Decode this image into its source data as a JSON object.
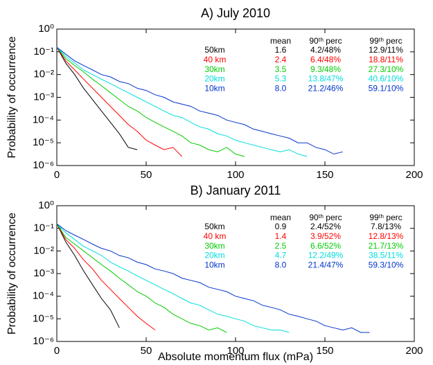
{
  "chart_data": [
    {
      "type": "line",
      "title": "A) July 2010",
      "ylabel": "Probability of occurrence",
      "ylog": true,
      "x": [
        0,
        5,
        10,
        15,
        20,
        25,
        30,
        35,
        40,
        45,
        50,
        55,
        60,
        65,
        70,
        75,
        80,
        85,
        90,
        95,
        100,
        105,
        110,
        115,
        120,
        125,
        130,
        135,
        140,
        145,
        150,
        155,
        160
      ],
      "series": [
        {
          "name": "50km",
          "color": "#000000",
          "values": [
            0.16,
            0.032,
            0.01,
            0.0025,
            0.00079,
            0.00025,
            7.9e-05,
            2.5e-05,
            6.3e-06,
            5e-06,
            null,
            null,
            null,
            null,
            null,
            null,
            null,
            null,
            null,
            null,
            null,
            null,
            null,
            null,
            null,
            null,
            null,
            null,
            null,
            null,
            null,
            null,
            null
          ]
        },
        {
          "name": "40 km",
          "color": "#ff0000",
          "values": [
            0.16,
            0.04,
            0.016,
            0.0063,
            0.0025,
            0.001,
            0.0004,
            0.00016,
            6.3e-05,
            3.2e-05,
            1.3e-05,
            7.9e-06,
            5e-06,
            6.3e-06,
            2.5e-06,
            null,
            null,
            null,
            null,
            null,
            null,
            null,
            null,
            null,
            null,
            null,
            null,
            null,
            null,
            null,
            null,
            null,
            null
          ]
        },
        {
          "name": "30km",
          "color": "#00cc00",
          "values": [
            0.16,
            0.05,
            0.025,
            0.013,
            0.0063,
            0.0032,
            0.0016,
            0.00079,
            0.0004,
            0.00025,
            0.00013,
            7.9e-05,
            5e-05,
            3.2e-05,
            2e-05,
            1e-05,
            7.9e-06,
            5e-06,
            4e-06,
            6.3e-06,
            3.2e-06,
            2.5e-06,
            null,
            null,
            null,
            null,
            null,
            null,
            null,
            null,
            null,
            null,
            null
          ]
        },
        {
          "name": "20km",
          "color": "#00dddd",
          "values": [
            0.16,
            0.063,
            0.032,
            0.016,
            0.01,
            0.0063,
            0.004,
            0.0025,
            0.0016,
            0.001,
            0.00063,
            0.0004,
            0.00025,
            0.00016,
            0.00013,
            7.9e-05,
            5e-05,
            4e-05,
            2.5e-05,
            2e-05,
            1.3e-05,
            1e-05,
            7.9e-06,
            6.3e-06,
            5e-06,
            4e-06,
            5e-06,
            3.2e-06,
            2.5e-06,
            null,
            null,
            null,
            null
          ]
        },
        {
          "name": "10km",
          "color": "#0033cc",
          "values": [
            0.16,
            0.079,
            0.04,
            0.025,
            0.016,
            0.01,
            0.0079,
            0.005,
            0.004,
            0.0025,
            0.002,
            0.0013,
            0.001,
            0.00063,
            0.0005,
            0.0004,
            0.00025,
            0.0002,
            0.00016,
            0.0001,
            7.9e-05,
            6.3e-05,
            4e-05,
            3.2e-05,
            2.5e-05,
            2e-05,
            1.6e-05,
            1e-05,
            1e-05,
            6.3e-06,
            5e-06,
            3.2e-06,
            4e-06
          ]
        }
      ],
      "table": {
        "columns": [
          "mean",
          "90ᵗʰ perc",
          "99ᵗʰ perc"
        ],
        "rows": [
          [
            "1.6",
            "4.2/48%",
            "12.9/11%"
          ],
          [
            "2.4",
            "6.4/48%",
            "18.8/11%"
          ],
          [
            "3.5",
            "9.3/48%",
            "27.3/10%"
          ],
          [
            "5.3",
            "13.8/47%",
            "40.6/10%"
          ],
          [
            "8.0",
            "21.2/46%",
            "59.1/10%"
          ]
        ]
      },
      "xlim": [
        0,
        200
      ],
      "xticks": [
        0,
        50,
        100,
        150,
        200
      ],
      "ylim": [
        1e-06,
        1
      ],
      "yticks": [
        {
          "value": 1,
          "label": "10⁰"
        },
        {
          "value": 0.1,
          "label": "10⁻¹"
        },
        {
          "value": 0.01,
          "label": "10⁻²"
        },
        {
          "value": 0.001,
          "label": "10⁻³"
        },
        {
          "value": 0.0001,
          "label": "10⁻⁴"
        },
        {
          "value": 1e-05,
          "label": "10⁻⁵"
        },
        {
          "value": 1e-06,
          "label": "10⁻⁶"
        }
      ]
    },
    {
      "type": "line",
      "title": "B) January 2011",
      "ylabel": "Probability of occurrence",
      "xlabel": "Absolute momentum flux (mPa)",
      "ylog": true,
      "x": [
        0,
        5,
        10,
        15,
        20,
        25,
        30,
        35,
        40,
        45,
        50,
        55,
        60,
        65,
        70,
        75,
        80,
        85,
        90,
        95,
        100,
        105,
        110,
        115,
        120,
        125,
        130,
        135,
        140,
        145,
        150,
        155,
        160,
        165,
        170,
        175
      ],
      "series": [
        {
          "name": "50km",
          "color": "#000000",
          "values": [
            0.16,
            0.025,
            0.0063,
            0.0013,
            0.00032,
            7.9e-05,
            2.5e-05,
            4e-06,
            null,
            null,
            null,
            null,
            null,
            null,
            null,
            null,
            null,
            null,
            null,
            null,
            null,
            null,
            null,
            null,
            null,
            null,
            null,
            null,
            null,
            null,
            null,
            null,
            null,
            null,
            null,
            null
          ]
        },
        {
          "name": "40 km",
          "color": "#ff0000",
          "values": [
            0.16,
            0.032,
            0.013,
            0.004,
            0.0016,
            0.0005,
            0.0002,
            7.9e-05,
            3.2e-05,
            1.3e-05,
            6.3e-06,
            3.2e-06,
            null,
            null,
            null,
            null,
            null,
            null,
            null,
            null,
            null,
            null,
            null,
            null,
            null,
            null,
            null,
            null,
            null,
            null,
            null,
            null,
            null,
            null,
            null,
            null
          ]
        },
        {
          "name": "30km",
          "color": "#00cc00",
          "values": [
            0.16,
            0.04,
            0.02,
            0.01,
            0.005,
            0.0025,
            0.0013,
            0.00063,
            0.00032,
            0.00016,
            0.0001,
            5e-05,
            3.2e-05,
            1.6e-05,
            1e-05,
            6.3e-06,
            5e-06,
            3.2e-06,
            4e-06,
            2.5e-06,
            null,
            null,
            null,
            null,
            null,
            null,
            null,
            null,
            null,
            null,
            null,
            null,
            null,
            null,
            null,
            null
          ]
        },
        {
          "name": "20km",
          "color": "#00dddd",
          "values": [
            0.16,
            0.063,
            0.032,
            0.016,
            0.01,
            0.0063,
            0.0032,
            0.002,
            0.0013,
            0.00079,
            0.0005,
            0.00032,
            0.0002,
            0.00013,
            7.9e-05,
            5e-05,
            4e-05,
            2.5e-05,
            1.6e-05,
            1.3e-05,
            1e-05,
            7.9e-06,
            5e-06,
            4e-06,
            3.2e-06,
            3.2e-06,
            2.5e-06,
            null,
            null,
            null,
            null,
            null,
            null,
            null,
            null,
            null
          ]
        },
        {
          "name": "10km",
          "color": "#0033cc",
          "values": [
            0.16,
            0.079,
            0.05,
            0.032,
            0.02,
            0.013,
            0.01,
            0.0063,
            0.005,
            0.0032,
            0.0025,
            0.0016,
            0.0013,
            0.001,
            0.00063,
            0.0005,
            0.0004,
            0.00025,
            0.0002,
            0.00016,
            0.0001,
            7.9e-05,
            6.3e-05,
            4e-05,
            3.2e-05,
            2.5e-05,
            1.6e-05,
            1.3e-05,
            1e-05,
            7.9e-06,
            5e-06,
            4e-06,
            3.2e-06,
            4e-06,
            2.5e-06,
            2.5e-06
          ]
        }
      ],
      "table": {
        "columns": [
          "mean",
          "90ᵗʰ perc",
          "99ᵗʰ perc"
        ],
        "rows": [
          [
            "0.9",
            "2.4/52%",
            "7.8/13%"
          ],
          [
            "1.4",
            "3.9/52%",
            "12.8/13%"
          ],
          [
            "2.5",
            "6.6/52%",
            "21.7/13%"
          ],
          [
            "4.7",
            "12.2/49%",
            "38.5/11%"
          ],
          [
            "8.0",
            "21.4/47%",
            "59.3/10%"
          ]
        ]
      },
      "xlim": [
        0,
        200
      ],
      "xticks": [
        0,
        50,
        100,
        150,
        200
      ],
      "ylim": [
        1e-06,
        1
      ],
      "yticks": [
        {
          "value": 1,
          "label": "10⁰"
        },
        {
          "value": 0.1,
          "label": "10⁻¹"
        },
        {
          "value": 0.01,
          "label": "10⁻²"
        },
        {
          "value": 0.001,
          "label": "10⁻³"
        },
        {
          "value": 0.0001,
          "label": "10⁻⁴"
        },
        {
          "value": 1e-05,
          "label": "10⁻⁵"
        },
        {
          "value": 1e-06,
          "label": "10⁻⁶"
        }
      ]
    }
  ]
}
